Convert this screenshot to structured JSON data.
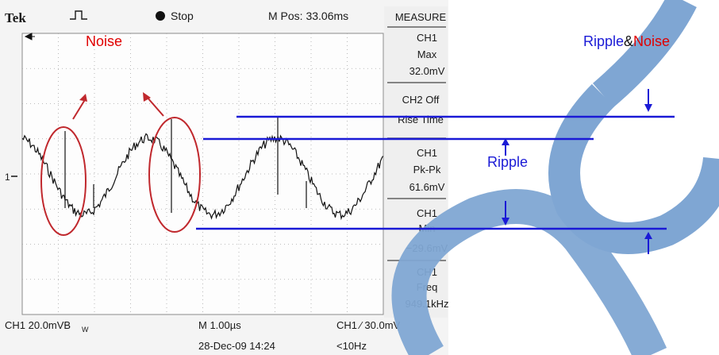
{
  "scope": {
    "brand": "Tek",
    "state": "Stop",
    "m_pos": "M Pos: 33.06ms",
    "ch1_marker": "1",
    "bottom": {
      "ch1_scale": "CH1  20.0mVB",
      "bw_sub": "W",
      "timebase": "M 1.00µs",
      "date": "28-Dec-09 14:24",
      "trigger": "CH1  ∕  30.0mV",
      "freq_limit": "<10Hz"
    },
    "measure": {
      "title": "MEASURE",
      "items": [
        {
          "source": "CH1",
          "name": "Max",
          "value": "32.0mV"
        },
        {
          "source": "CH2 Off",
          "name": "Rise Time",
          "value": ""
        },
        {
          "source": "CH1",
          "name": "Pk-Pk",
          "value": "61.6mV"
        },
        {
          "source": "CH1",
          "name": "Min",
          "value": "−29.6mV"
        },
        {
          "source": "CH1",
          "name": "Freq",
          "value": "949.1kHz"
        }
      ]
    }
  },
  "annotations": {
    "noise_label": "Noise",
    "ripple_label": "Ripple",
    "ripple_noise_ripple": "Ripple",
    "ripple_noise_amp": "&",
    "ripple_noise_noise": "Noise"
  },
  "colors": {
    "noise_red": "#e00000",
    "guide_blue": "#1a1ad6",
    "accent_blue": "#7fa6d3",
    "ellipse_red": "#c0282d",
    "trace": "#111111",
    "screen_bg": "#fdfdfd",
    "grid": "#9a9a9a"
  }
}
